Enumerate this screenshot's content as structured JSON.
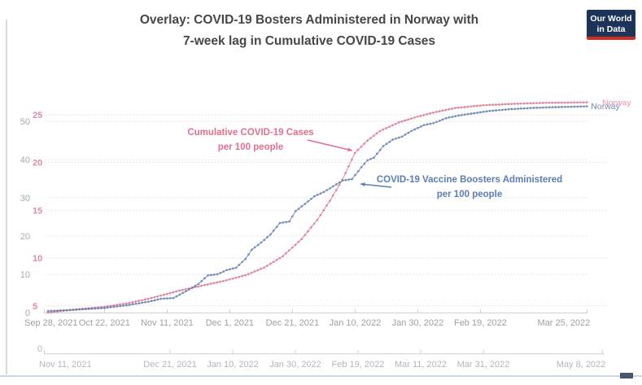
{
  "title": {
    "line1": "Overlay: COVID-19 Bosters Administered in Norway with",
    "line2": "7-week lag in Cumulative COVID-19 Cases"
  },
  "logo": {
    "line1": "Our World",
    "line2": "in Data"
  },
  "colors": {
    "boosters_line": "#5d7ab2",
    "cases_line": "#df8099",
    "boosters_text": "#5b7db6",
    "cases_text": "#e4708d",
    "boosters_axis_label": "#a3aaba",
    "cases_axis_label": "#e38da1",
    "x_label_primary": "#9f9f9f",
    "x_label_secondary": "#b5b5b5",
    "grid_gray": "#e0e0e0",
    "grid_pink": "#ecd9de",
    "axis_line": "#cfcfcf"
  },
  "chart_data": {
    "type": "line",
    "title": "Overlay: COVID-19 Bosters Administered in Norway with 7-week lag in Cumulative COVID-19 Cases",
    "grid": true,
    "end_labels": {
      "boosters": "Norway",
      "cases": "Norway"
    },
    "annotations": [
      {
        "id": "cases",
        "line1": "Cumulative COVID-19 Cases",
        "line2": "per 100 people"
      },
      {
        "id": "boosters",
        "line1": "COVID-19 Vaccine Boosters Administered",
        "line2": "per 100 people"
      }
    ],
    "axes": {
      "boosters_y": {
        "ticks": [
          0,
          10,
          20,
          30,
          40,
          50
        ],
        "range": [
          0,
          55
        ]
      },
      "cases_y": {
        "ticks": [
          5,
          10,
          15,
          20,
          25
        ],
        "zero_label": "0",
        "range": [
          0,
          26.5
        ]
      },
      "boosters_x": {
        "start": "2021-09-28",
        "ticks": [
          {
            "label": "Sep 28, 2021",
            "date": "2021-09-28"
          },
          {
            "label": "Oct 22, 2021",
            "date": "2021-10-22"
          },
          {
            "label": "Nov 11, 2021",
            "date": "2021-11-11"
          },
          {
            "label": "Dec 1, 2021",
            "date": "2021-12-01"
          },
          {
            "label": "Dec 21, 2021",
            "date": "2021-12-21"
          },
          {
            "label": "Jan 10, 2022",
            "date": "2022-01-10"
          },
          {
            "label": "Jan 30, 2022",
            "date": "2022-01-30"
          },
          {
            "label": "Feb 19, 2022",
            "date": "2022-02-19"
          },
          {
            "label": "Mar 25, 2022",
            "date": "2022-03-25"
          }
        ]
      },
      "cases_x": {
        "start": "2021-11-11",
        "ticks": [
          {
            "label": "Nov 11, 2021",
            "date": "2021-11-11"
          },
          {
            "label": "Dec 21, 2021",
            "date": "2021-12-21"
          },
          {
            "label": "Jan 10, 2022",
            "date": "2022-01-10"
          },
          {
            "label": "Jan 30, 2022",
            "date": "2022-01-30"
          },
          {
            "label": "Feb 19, 2022",
            "date": "2022-02-19"
          },
          {
            "label": "Mar 11, 2022",
            "date": "2022-03-11"
          },
          {
            "label": "Mar 31, 2022",
            "date": "2022-03-31"
          },
          {
            "label": "May 8, 2022",
            "date": "2022-05-08"
          }
        ]
      }
    },
    "series": [
      {
        "name": "COVID-19 Vaccine Boosters Administered per 100 people",
        "id": "boosters",
        "points": [
          {
            "date": "2021-10-04",
            "value": 0.4
          },
          {
            "date": "2021-10-12",
            "value": 0.7
          },
          {
            "date": "2021-10-22",
            "value": 1.2
          },
          {
            "date": "2021-10-30",
            "value": 2.0
          },
          {
            "date": "2021-11-06",
            "value": 3.0
          },
          {
            "date": "2021-11-09",
            "value": 3.6
          },
          {
            "date": "2021-11-13",
            "value": 3.8
          },
          {
            "date": "2021-11-18",
            "value": 6.0
          },
          {
            "date": "2021-11-21",
            "value": 7.5
          },
          {
            "date": "2021-11-24",
            "value": 9.7
          },
          {
            "date": "2021-11-27",
            "value": 10.0
          },
          {
            "date": "2021-11-30",
            "value": 11.1
          },
          {
            "date": "2021-12-03",
            "value": 11.7
          },
          {
            "date": "2021-12-06",
            "value": 14.0
          },
          {
            "date": "2021-12-08",
            "value": 16.4
          },
          {
            "date": "2021-12-11",
            "value": 18.3
          },
          {
            "date": "2021-12-14",
            "value": 20.4
          },
          {
            "date": "2021-12-17",
            "value": 23.4
          },
          {
            "date": "2021-12-20",
            "value": 23.8
          },
          {
            "date": "2021-12-22",
            "value": 26.5
          },
          {
            "date": "2021-12-25",
            "value": 28.4
          },
          {
            "date": "2021-12-28",
            "value": 30.4
          },
          {
            "date": "2021-12-31",
            "value": 31.5
          },
          {
            "date": "2022-01-03",
            "value": 33.0
          },
          {
            "date": "2022-01-06",
            "value": 34.5
          },
          {
            "date": "2022-01-09",
            "value": 34.9
          },
          {
            "date": "2022-01-12",
            "value": 38.0
          },
          {
            "date": "2022-01-14",
            "value": 39.8
          },
          {
            "date": "2022-01-16",
            "value": 40.5
          },
          {
            "date": "2022-01-19",
            "value": 43.5
          },
          {
            "date": "2022-01-22",
            "value": 45.2
          },
          {
            "date": "2022-01-25",
            "value": 46.0
          },
          {
            "date": "2022-01-28",
            "value": 47.5
          },
          {
            "date": "2022-02-01",
            "value": 49.0
          },
          {
            "date": "2022-02-04",
            "value": 49.5
          },
          {
            "date": "2022-02-08",
            "value": 50.8
          },
          {
            "date": "2022-02-12",
            "value": 51.5
          },
          {
            "date": "2022-02-16",
            "value": 52.0
          },
          {
            "date": "2022-02-22",
            "value": 52.7
          },
          {
            "date": "2022-03-01",
            "value": 53.2
          },
          {
            "date": "2022-03-08",
            "value": 53.5
          },
          {
            "date": "2022-03-15",
            "value": 53.7
          },
          {
            "date": "2022-03-25",
            "value": 53.9
          }
        ]
      },
      {
        "name": "Cumulative COVID-19 Cases per 100 people",
        "id": "cases",
        "points": [
          {
            "date": "2021-11-12",
            "value": 4.3
          },
          {
            "date": "2021-11-20",
            "value": 4.6
          },
          {
            "date": "2021-11-30",
            "value": 4.9
          },
          {
            "date": "2021-12-08",
            "value": 5.3
          },
          {
            "date": "2021-12-16",
            "value": 5.9
          },
          {
            "date": "2021-12-24",
            "value": 6.6
          },
          {
            "date": "2021-12-31",
            "value": 7.1
          },
          {
            "date": "2022-01-07",
            "value": 7.6
          },
          {
            "date": "2022-01-14",
            "value": 8.2
          },
          {
            "date": "2022-01-20",
            "value": 9.0
          },
          {
            "date": "2022-01-26",
            "value": 10.2
          },
          {
            "date": "2022-02-01",
            "value": 12.0
          },
          {
            "date": "2022-02-06",
            "value": 14.0
          },
          {
            "date": "2022-02-10",
            "value": 16.0
          },
          {
            "date": "2022-02-14",
            "value": 18.2
          },
          {
            "date": "2022-02-18",
            "value": 21.0
          },
          {
            "date": "2022-02-22",
            "value": 22.3
          },
          {
            "date": "2022-02-26",
            "value": 23.3
          },
          {
            "date": "2022-03-04",
            "value": 24.2
          },
          {
            "date": "2022-03-10",
            "value": 24.8
          },
          {
            "date": "2022-03-16",
            "value": 25.3
          },
          {
            "date": "2022-03-22",
            "value": 25.7
          },
          {
            "date": "2022-03-31",
            "value": 26.0
          },
          {
            "date": "2022-04-10",
            "value": 26.15
          },
          {
            "date": "2022-04-20",
            "value": 26.25
          },
          {
            "date": "2022-05-03",
            "value": 26.3
          }
        ]
      }
    ]
  }
}
